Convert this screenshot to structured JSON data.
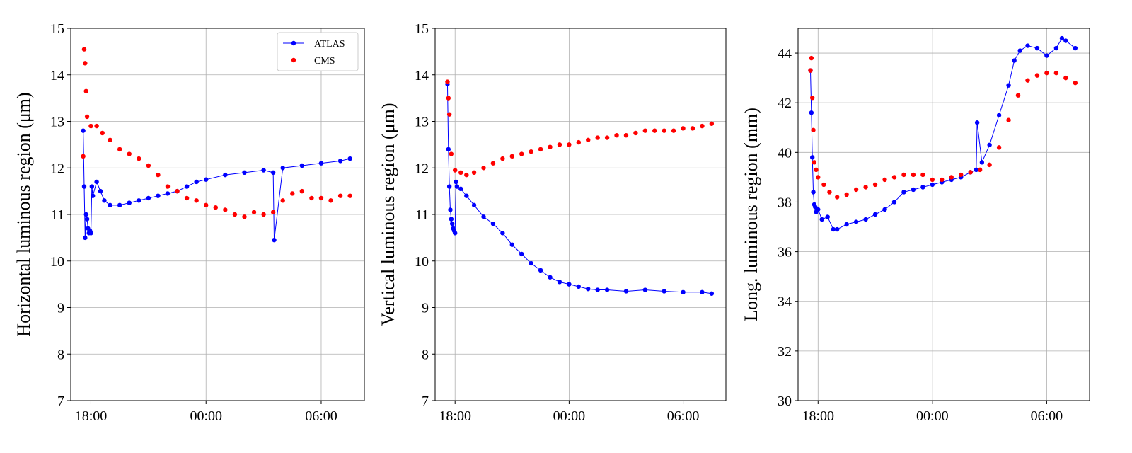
{
  "chart_data": [
    {
      "type": "scatter",
      "title": "",
      "xlabel": "",
      "ylabel": "Horizontal luminous region (μm)",
      "x_ticks": [
        "18:00",
        "00:00",
        "06:00"
      ],
      "x_tick_values": [
        18,
        24,
        30
      ],
      "xlim": [
        16.95,
        32.25
      ],
      "ylim": [
        7,
        15
      ],
      "y_ticks": [
        7,
        8,
        9,
        10,
        11,
        12,
        13,
        14,
        15
      ],
      "grid": true,
      "legend": {
        "placement": "top-right",
        "entries": [
          "ATLAS",
          "CMS"
        ]
      },
      "series": [
        {
          "name": "ATLAS",
          "style": "line-marker",
          "color": "#0000ff",
          "x": [
            17.6,
            17.65,
            17.7,
            17.75,
            17.8,
            17.85,
            17.9,
            17.95,
            18.0,
            18.05,
            18.1,
            18.3,
            18.5,
            18.7,
            19.0,
            19.5,
            20.0,
            20.5,
            21.0,
            21.5,
            22.0,
            22.5,
            23.0,
            23.5,
            24.0,
            25.0,
            26.0,
            27.0,
            27.5,
            27.55,
            28.0,
            29.0,
            30.0,
            31.0,
            31.5
          ],
          "y": [
            12.8,
            11.6,
            10.5,
            11.0,
            10.9,
            10.7,
            10.6,
            10.65,
            10.6,
            11.6,
            11.4,
            11.7,
            11.5,
            11.3,
            11.2,
            11.2,
            11.25,
            11.3,
            11.35,
            11.4,
            11.45,
            11.5,
            11.6,
            11.7,
            11.75,
            11.85,
            11.9,
            11.95,
            11.9,
            10.45,
            12.0,
            12.05,
            12.1,
            12.15,
            12.2
          ]
        },
        {
          "name": "CMS",
          "style": "marker",
          "color": "#ff0000",
          "x": [
            17.6,
            17.65,
            17.7,
            17.75,
            17.8,
            18.0,
            18.3,
            18.6,
            19.0,
            19.5,
            20.0,
            20.5,
            21.0,
            21.5,
            22.0,
            22.5,
            23.0,
            23.5,
            24.0,
            24.5,
            25.0,
            25.5,
            26.0,
            26.5,
            27.0,
            27.5,
            28.0,
            28.5,
            29.0,
            29.5,
            30.0,
            30.5,
            31.0,
            31.5
          ],
          "y": [
            12.25,
            14.55,
            14.25,
            13.65,
            13.1,
            12.9,
            12.9,
            12.75,
            12.6,
            12.4,
            12.3,
            12.2,
            12.05,
            11.85,
            11.6,
            11.5,
            11.35,
            11.3,
            11.2,
            11.15,
            11.1,
            11.0,
            10.95,
            11.05,
            11.0,
            11.05,
            11.3,
            11.45,
            11.5,
            11.35,
            11.35,
            11.3,
            11.4,
            11.4
          ]
        }
      ]
    },
    {
      "type": "scatter",
      "title": "",
      "xlabel": "",
      "ylabel": "Vertical luminous region (μm)",
      "x_ticks": [
        "18:00",
        "00:00",
        "06:00"
      ],
      "x_tick_values": [
        18,
        24,
        30
      ],
      "xlim": [
        16.95,
        32.25
      ],
      "ylim": [
        7,
        15
      ],
      "y_ticks": [
        7,
        8,
        9,
        10,
        11,
        12,
        13,
        14,
        15
      ],
      "grid": true,
      "series": [
        {
          "name": "ATLAS",
          "style": "line-marker",
          "color": "#0000ff",
          "x": [
            17.6,
            17.65,
            17.7,
            17.75,
            17.8,
            17.85,
            17.9,
            17.95,
            18.0,
            18.05,
            18.1,
            18.3,
            18.6,
            19.0,
            19.5,
            20.0,
            20.5,
            21.0,
            21.5,
            22.0,
            22.5,
            23.0,
            23.5,
            24.0,
            24.5,
            25.0,
            25.5,
            26.0,
            27.0,
            28.0,
            29.0,
            30.0,
            31.0,
            31.5
          ],
          "y": [
            13.8,
            12.4,
            11.6,
            11.1,
            10.9,
            10.8,
            10.7,
            10.65,
            10.6,
            11.7,
            11.6,
            11.55,
            11.4,
            11.2,
            10.95,
            10.8,
            10.6,
            10.35,
            10.15,
            9.95,
            9.8,
            9.65,
            9.55,
            9.5,
            9.45,
            9.4,
            9.38,
            9.38,
            9.35,
            9.38,
            9.35,
            9.33,
            9.33,
            9.3
          ]
        },
        {
          "name": "CMS",
          "style": "marker",
          "color": "#ff0000",
          "x": [
            17.6,
            17.65,
            17.7,
            17.8,
            18.0,
            18.3,
            18.6,
            19.0,
            19.5,
            20.0,
            20.5,
            21.0,
            21.5,
            22.0,
            22.5,
            23.0,
            23.5,
            24.0,
            24.5,
            25.0,
            25.5,
            26.0,
            26.5,
            27.0,
            27.5,
            28.0,
            28.5,
            29.0,
            29.5,
            30.0,
            30.5,
            31.0,
            31.5
          ],
          "y": [
            13.85,
            13.5,
            13.15,
            12.3,
            11.95,
            11.9,
            11.85,
            11.9,
            12.0,
            12.1,
            12.2,
            12.25,
            12.3,
            12.35,
            12.4,
            12.45,
            12.5,
            12.5,
            12.55,
            12.6,
            12.65,
            12.65,
            12.7,
            12.7,
            12.75,
            12.8,
            12.8,
            12.8,
            12.8,
            12.85,
            12.85,
            12.9,
            12.95
          ]
        }
      ]
    },
    {
      "type": "scatter",
      "title": "",
      "xlabel": "",
      "ylabel": "Long. luminous region (mm)",
      "x_ticks": [
        "18:00",
        "00:00",
        "06:00"
      ],
      "x_tick_values": [
        18,
        24,
        30
      ],
      "xlim": [
        16.95,
        32.25
      ],
      "ylim": [
        30,
        45
      ],
      "y_ticks": [
        30,
        32,
        34,
        36,
        38,
        40,
        42,
        44
      ],
      "grid": true,
      "series": [
        {
          "name": "ATLAS",
          "style": "line-marker",
          "color": "#0000ff",
          "x": [
            17.6,
            17.65,
            17.7,
            17.75,
            17.8,
            17.85,
            17.9,
            17.95,
            18.0,
            18.2,
            18.5,
            18.8,
            19.0,
            19.5,
            20.0,
            20.5,
            21.0,
            21.5,
            22.0,
            22.5,
            23.0,
            23.5,
            24.0,
            24.5,
            25.0,
            25.5,
            26.0,
            26.3,
            26.35,
            26.6,
            27.0,
            27.5,
            28.0,
            28.3,
            28.6,
            29.0,
            29.5,
            30.0,
            30.5,
            30.8,
            31.0,
            31.5
          ],
          "y": [
            43.3,
            41.6,
            39.8,
            38.4,
            37.9,
            37.8,
            37.6,
            37.7,
            37.7,
            37.3,
            37.4,
            36.9,
            36.9,
            37.1,
            37.2,
            37.3,
            37.5,
            37.7,
            38.0,
            38.4,
            38.5,
            38.6,
            38.7,
            38.8,
            38.9,
            39.0,
            39.2,
            39.3,
            41.2,
            39.6,
            40.3,
            41.5,
            42.7,
            43.7,
            44.1,
            44.3,
            44.2,
            43.9,
            44.2,
            44.6,
            44.5,
            44.2
          ]
        },
        {
          "name": "CMS",
          "style": "marker",
          "color": "#ff0000",
          "x": [
            17.6,
            17.65,
            17.7,
            17.75,
            17.8,
            17.9,
            18.0,
            18.3,
            18.6,
            19.0,
            19.5,
            20.0,
            20.5,
            21.0,
            21.5,
            22.0,
            22.5,
            23.0,
            23.5,
            24.0,
            24.5,
            25.0,
            25.5,
            26.0,
            26.5,
            27.0,
            27.5,
            28.0,
            28.5,
            29.0,
            29.5,
            30.0,
            30.5,
            31.0,
            31.5
          ],
          "y": [
            43.3,
            43.8,
            42.2,
            40.9,
            39.6,
            39.3,
            39.0,
            38.7,
            38.4,
            38.2,
            38.3,
            38.5,
            38.6,
            38.7,
            38.9,
            39.0,
            39.1,
            39.1,
            39.1,
            38.9,
            38.9,
            39.0,
            39.1,
            39.2,
            39.3,
            39.5,
            40.2,
            41.3,
            42.3,
            42.9,
            43.1,
            43.2,
            43.2,
            43.0,
            42.8
          ]
        }
      ]
    }
  ]
}
